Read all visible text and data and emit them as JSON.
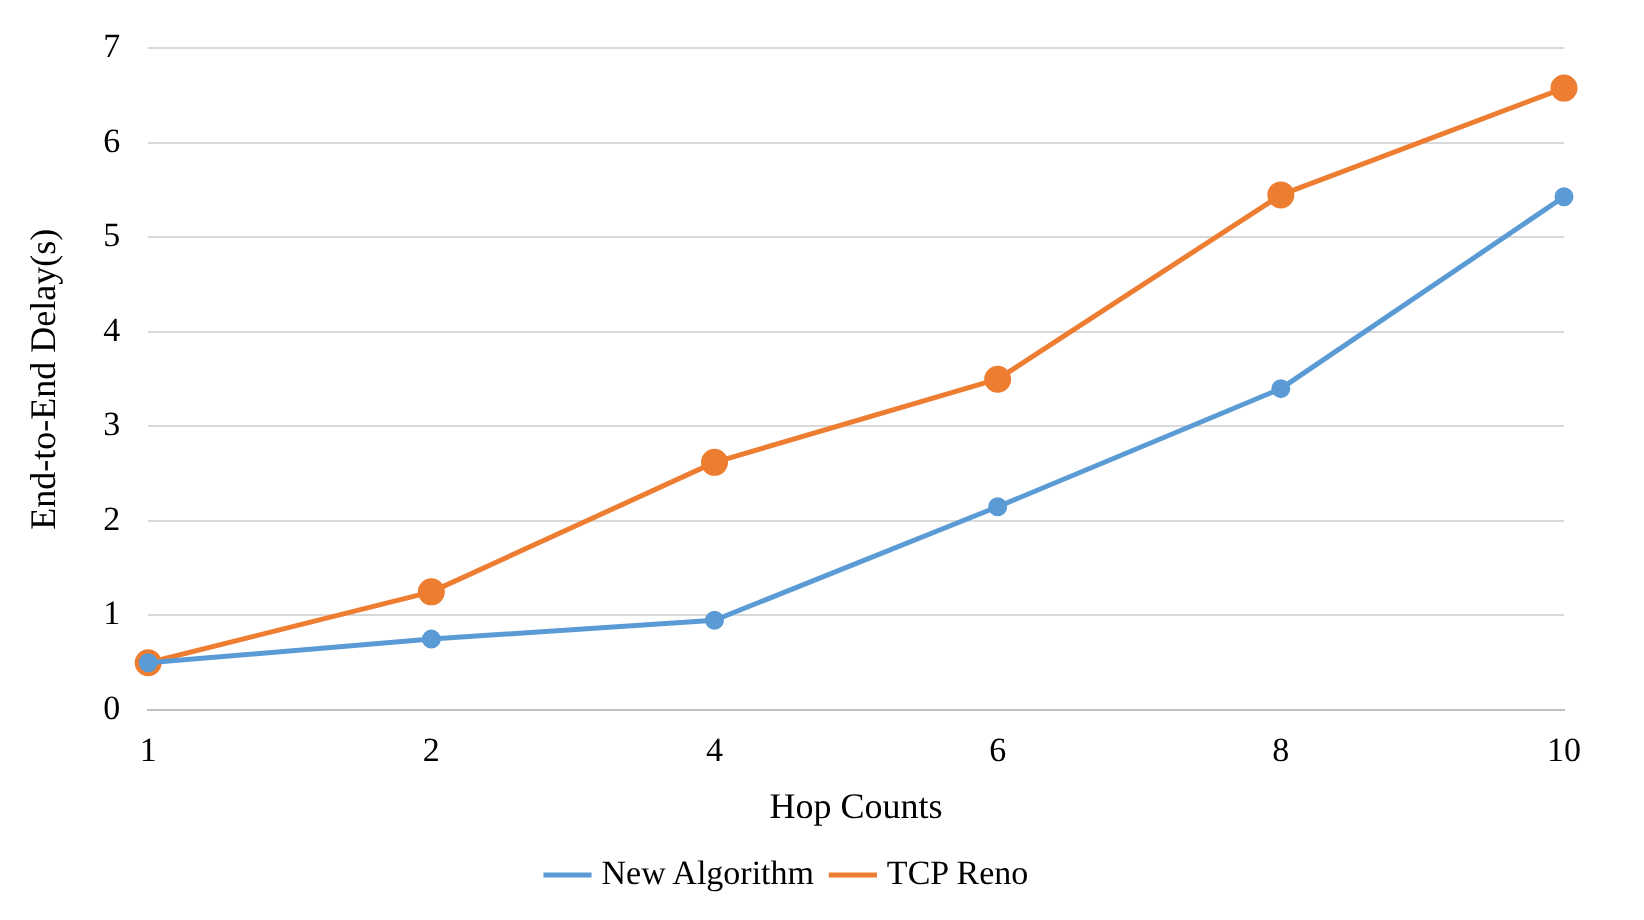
{
  "chart_data": {
    "type": "line",
    "xlabel": "Hop Counts",
    "ylabel": "End-to-End Delay(s)",
    "categories": [
      "1",
      "2",
      "4",
      "6",
      "8",
      "10"
    ],
    "series": [
      {
        "name": "New Algorithm",
        "color": "#5b9bd5",
        "values": [
          0.5,
          0.75,
          0.95,
          2.15,
          3.4,
          5.43
        ]
      },
      {
        "name": "TCP Reno",
        "color": "#ed7d31",
        "values": [
          0.5,
          1.25,
          2.62,
          3.5,
          5.45,
          6.58
        ]
      }
    ],
    "ylim": [
      0,
      7
    ],
    "yticks": [
      0,
      1,
      2,
      3,
      4,
      5,
      6,
      7
    ],
    "grid": "y",
    "legend": "bottom",
    "marker": "circle"
  }
}
